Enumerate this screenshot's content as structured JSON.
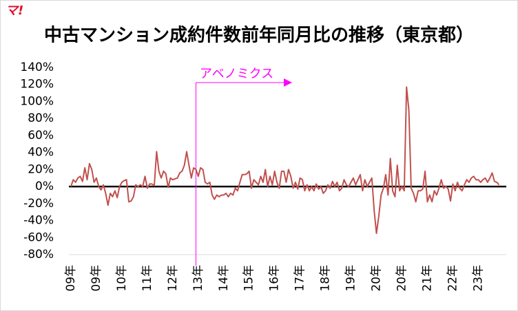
{
  "chart_data": {
    "type": "line",
    "title": "中古マンション成約件数前年同月比の推移（東京都）",
    "logo": "マ!",
    "annotation": "アベノミクス",
    "categories": [
      "09年",
      null,
      null,
      null,
      null,
      null,
      null,
      null,
      null,
      null,
      null,
      "09年",
      null,
      null,
      null,
      null,
      null,
      null,
      null,
      null,
      null,
      null,
      "10年",
      null,
      null,
      null,
      null,
      null,
      null,
      null,
      null,
      null,
      null,
      "11年",
      null,
      null,
      null,
      null,
      null,
      null,
      null,
      null,
      null,
      null,
      "12年",
      null,
      null,
      null,
      null,
      null,
      null,
      null,
      null,
      null,
      null,
      "13年",
      null,
      null,
      null,
      null,
      null,
      null,
      null,
      null,
      null,
      null,
      "14年",
      null,
      null,
      null,
      null,
      null,
      null,
      null,
      null,
      null,
      null,
      "15年",
      null,
      null,
      null,
      null,
      null,
      null,
      null,
      null,
      null,
      null,
      "16年",
      null,
      null,
      null,
      null,
      null,
      null,
      null,
      null,
      null,
      null,
      "17年",
      null,
      null,
      null,
      null,
      null,
      null,
      null,
      null,
      null,
      null,
      "18年",
      null,
      null,
      null,
      null,
      null,
      null,
      null,
      null,
      null,
      null,
      "19年",
      null,
      null,
      null,
      null,
      null,
      null,
      null,
      null,
      null,
      null,
      "20年",
      null,
      null,
      null,
      null,
      null,
      null,
      null,
      null,
      null,
      null,
      "20年",
      null,
      null,
      null,
      null,
      null,
      null,
      null,
      null,
      null,
      null,
      "21年",
      null,
      null,
      null,
      null,
      null,
      null,
      null,
      null,
      null,
      null,
      "22年",
      null,
      null,
      null,
      null,
      null,
      null,
      null,
      null,
      null,
      null,
      "23年",
      null,
      null,
      null,
      null,
      null,
      null,
      null,
      null,
      null
    ],
    "values": [
      0,
      8,
      5,
      10,
      12,
      6,
      22,
      8,
      27,
      20,
      5,
      10,
      0,
      -4,
      2,
      -8,
      -22,
      -8,
      -12,
      -5,
      -13,
      0,
      5,
      7,
      8,
      -18,
      -17,
      -12,
      2,
      0,
      2,
      0,
      12,
      -2,
      3,
      3,
      1,
      41,
      18,
      10,
      18,
      15,
      -1,
      10,
      8,
      9,
      10,
      16,
      18,
      25,
      41,
      25,
      10,
      22,
      20,
      12,
      22,
      20,
      5,
      3,
      5,
      -10,
      -15,
      -10,
      -12,
      -10,
      -10,
      -8,
      -12,
      -8,
      -10,
      -2,
      -5,
      5,
      14,
      14,
      15,
      18,
      -2,
      8,
      5,
      2,
      12,
      5,
      20,
      0,
      12,
      2,
      18,
      5,
      -2,
      18,
      18,
      5,
      20,
      12,
      -2,
      5,
      -3,
      10,
      8,
      -5,
      2,
      -5,
      0,
      -5,
      3,
      -3,
      0,
      -8,
      -5,
      2,
      -2,
      6,
      0,
      5,
      -5,
      -2,
      8,
      2,
      0,
      5,
      10,
      2,
      8,
      14,
      -5,
      8,
      0,
      5,
      10,
      -28,
      -55,
      -35,
      -10,
      -2,
      14,
      -10,
      33,
      -5,
      -12,
      25,
      -5,
      0,
      -5,
      117,
      90,
      -2,
      -8,
      -18,
      -5,
      -5,
      -3,
      18,
      -18,
      -10,
      -18,
      -5,
      -10,
      -2,
      8,
      -2,
      0,
      -3,
      -17,
      3,
      -5,
      5,
      -2,
      -5,
      2,
      8,
      5,
      10,
      12,
      8,
      8,
      5,
      8,
      10,
      5,
      10,
      16,
      6,
      5,
      2
    ],
    "color": "#c0504d",
    "ylim": [
      -80,
      140
    ],
    "yticks": [
      {
        "value": -80,
        "label": "-80%"
      },
      {
        "value": -60,
        "label": "-60%"
      },
      {
        "value": -40,
        "label": "-40%"
      },
      {
        "value": -20,
        "label": "-20%"
      },
      {
        "value": 0,
        "label": "0%"
      },
      {
        "value": 20,
        "label": "20%"
      },
      {
        "value": 40,
        "label": "40%"
      },
      {
        "value": 60,
        "label": "60%"
      },
      {
        "value": 80,
        "label": "80%"
      },
      {
        "value": 100,
        "label": "100%"
      },
      {
        "value": 120,
        "label": "120%"
      },
      {
        "value": 140,
        "label": "140%"
      }
    ],
    "grid": false
  }
}
